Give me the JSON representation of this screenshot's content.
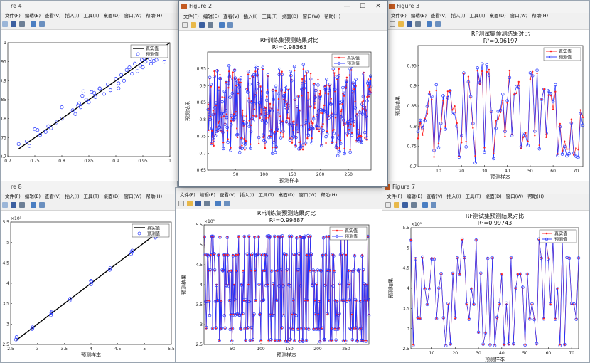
{
  "menu": [
    "文件(F)",
    "编辑(E)",
    "查看(V)",
    "插入(I)",
    "工具(T)",
    "桌面(D)",
    "窗口(W)",
    "帮助(H)"
  ],
  "windows": {
    "fig4": {
      "title": "re 4"
    },
    "fig2": {
      "title": "Figure 2"
    },
    "fig3": {
      "title": "Figure 3"
    },
    "fig8": {
      "title": "re 8"
    },
    "fig7": {
      "title": "Figure 7"
    }
  },
  "colors": {
    "true_series": "#ff2020",
    "pred_series": "#2233ff",
    "fit_line": "#000000"
  },
  "chart_data": [
    {
      "id": "fig4",
      "type": "scatter",
      "legend": [
        "真实值",
        "预测值"
      ],
      "xlim": [
        0.7,
        1.0
      ],
      "ylim": [
        0.7,
        1.0
      ],
      "xticks": [
        "0.7",
        "0.75",
        "0.8",
        "0.85",
        "0.9",
        "0.95",
        "1"
      ],
      "yticks": [
        "0.7",
        "0.75",
        "0.8",
        "0.85",
        "0.9",
        "0.95",
        "1"
      ],
      "line": [
        [
          0.72,
          0.72
        ],
        [
          1.0,
          1.0
        ]
      ],
      "points": [
        [
          0.72,
          0.733
        ],
        [
          0.735,
          0.74
        ],
        [
          0.74,
          0.728
        ],
        [
          0.75,
          0.772
        ],
        [
          0.755,
          0.77
        ],
        [
          0.76,
          0.757
        ],
        [
          0.77,
          0.765
        ],
        [
          0.775,
          0.78
        ],
        [
          0.79,
          0.79
        ],
        [
          0.8,
          0.8
        ],
        [
          0.82,
          0.822
        ],
        [
          0.825,
          0.812
        ],
        [
          0.83,
          0.835
        ],
        [
          0.832,
          0.84
        ],
        [
          0.835,
          0.83
        ],
        [
          0.838,
          0.86
        ],
        [
          0.84,
          0.872
        ],
        [
          0.845,
          0.85
        ],
        [
          0.85,
          0.843
        ],
        [
          0.855,
          0.87
        ],
        [
          0.86,
          0.868
        ],
        [
          0.862,
          0.857
        ],
        [
          0.87,
          0.878
        ],
        [
          0.878,
          0.865
        ],
        [
          0.885,
          0.89
        ],
        [
          0.89,
          0.875
        ],
        [
          0.9,
          0.905
        ],
        [
          0.905,
          0.893
        ],
        [
          0.91,
          0.915
        ],
        [
          0.915,
          0.9
        ],
        [
          0.92,
          0.928
        ],
        [
          0.925,
          0.935
        ],
        [
          0.93,
          0.918
        ],
        [
          0.935,
          0.945
        ],
        [
          0.94,
          0.925
        ],
        [
          0.945,
          0.94
        ],
        [
          0.948,
          0.955
        ],
        [
          0.95,
          0.935
        ],
        [
          0.952,
          0.96
        ],
        [
          0.955,
          0.95
        ],
        [
          0.96,
          0.965
        ],
        [
          0.963,
          0.958
        ],
        [
          0.965,
          0.945
        ],
        [
          0.97,
          0.952
        ],
        [
          0.975,
          0.955
        ],
        [
          0.8,
          0.83
        ],
        [
          0.78,
          0.775
        ],
        [
          0.905,
          0.88
        ],
        [
          0.87,
          0.88
        ],
        [
          0.99,
          0.95
        ]
      ]
    },
    {
      "id": "fig2",
      "type": "line",
      "title": "RF训练集预测结果对比",
      "subtitle": "R²=0.98363",
      "xlabel": "预测样本",
      "ylabel": "预测结果",
      "xlim": [
        0,
        290
      ],
      "ylim": [
        0.65,
        1.0
      ],
      "xticks": [
        "50",
        "100",
        "150",
        "200",
        "250"
      ],
      "yticks": [
        "0.65",
        "0.7",
        "0.75",
        "0.8",
        "0.85",
        "0.9",
        "0.95"
      ],
      "n": 290,
      "seed": 7,
      "low": 0.71,
      "high": 0.95,
      "legend": [
        "真实值",
        "预测值"
      ]
    },
    {
      "id": "fig3",
      "type": "line",
      "title": "RF测试集预测结果对比",
      "subtitle": "R²=0.96197",
      "xlabel": "预测样本",
      "ylabel": "预测结果",
      "xlim": [
        1,
        73
      ],
      "ylim": [
        0.7,
        1.0
      ],
      "xticks": [
        "10",
        "20",
        "30",
        "40",
        "50",
        "60",
        "70"
      ],
      "yticks": [
        "0.7",
        "0.75",
        "0.8",
        "0.85",
        "0.9",
        "0.95"
      ],
      "n": 73,
      "seed": 3,
      "low": 0.72,
      "high": 0.95,
      "legend": [
        "真实值",
        "预测值"
      ]
    },
    {
      "id": "fig8",
      "type": "scatter",
      "legend": [
        "真实值",
        "预测值"
      ],
      "xlim": [
        2.5,
        5.5
      ],
      "ylim": [
        2.5,
        5.5
      ],
      "exponent": "×10⁵",
      "xticks": [
        "2.5",
        "3",
        "3.5",
        "4",
        "4.5",
        "5",
        "5.5"
      ],
      "yticks": [
        "2.5",
        "3",
        "3.5",
        "4",
        "4.5",
        "5",
        "5.5"
      ],
      "xlabel": "预测样本",
      "line": [
        [
          2.6,
          2.6
        ],
        [
          5.3,
          5.3
        ]
      ],
      "points": [
        [
          2.6,
          2.62
        ],
        [
          2.61,
          2.68
        ],
        [
          2.9,
          2.88
        ],
        [
          2.91,
          2.92
        ],
        [
          3.25,
          3.22
        ],
        [
          3.26,
          3.28
        ],
        [
          3.27,
          3.3
        ],
        [
          3.6,
          3.57
        ],
        [
          3.61,
          3.62
        ],
        [
          4.0,
          3.98
        ],
        [
          4.01,
          4.03
        ],
        [
          4.0,
          4.06
        ],
        [
          4.35,
          4.33
        ],
        [
          4.36,
          4.37
        ],
        [
          4.75,
          4.72
        ],
        [
          4.76,
          4.77
        ],
        [
          4.77,
          4.8
        ],
        [
          5.2,
          5.12
        ],
        [
          5.21,
          5.14
        ]
      ]
    },
    {
      "id": "fig7",
      "type": "line",
      "title": "RF测试集预测结果对比",
      "subtitle": "R²=0.99743",
      "xlabel": "预测样本",
      "ylabel": "预测结果",
      "xlim": [
        1,
        73
      ],
      "ylim": [
        2.5,
        5.5
      ],
      "exponent": "×10⁵",
      "xticks": [
        "10",
        "20",
        "30",
        "40",
        "50",
        "60",
        "70"
      ],
      "yticks": [
        "2.5",
        "3",
        "3.5",
        "4",
        "4.5",
        "5",
        "5.5"
      ],
      "n": 73,
      "seed": 11,
      "levels": [
        2.6,
        2.9,
        3.25,
        3.6,
        4.0,
        4.35,
        4.75,
        5.2
      ],
      "legend": [
        "真实值",
        "预测值"
      ]
    },
    {
      "id": "fig5",
      "type": "line",
      "title": "RF训练集预测结果对比",
      "subtitle": "R²=0.99887",
      "xlabel": "预测样本",
      "ylabel": "预测结果",
      "xlim": [
        0,
        290
      ],
      "ylim": [
        2.5,
        5.5
      ],
      "exponent": "×10⁵",
      "xticks": [
        "50",
        "100",
        "150",
        "200",
        "250"
      ],
      "yticks": [
        "2.5",
        "3",
        "3.5",
        "4",
        "4.5",
        "5",
        "5.5"
      ],
      "n": 290,
      "seed": 5,
      "levels": [
        2.6,
        2.9,
        3.25,
        3.6,
        4.0,
        4.35,
        4.75,
        5.2
      ],
      "legend": [
        "真实值",
        "预测值"
      ]
    }
  ]
}
